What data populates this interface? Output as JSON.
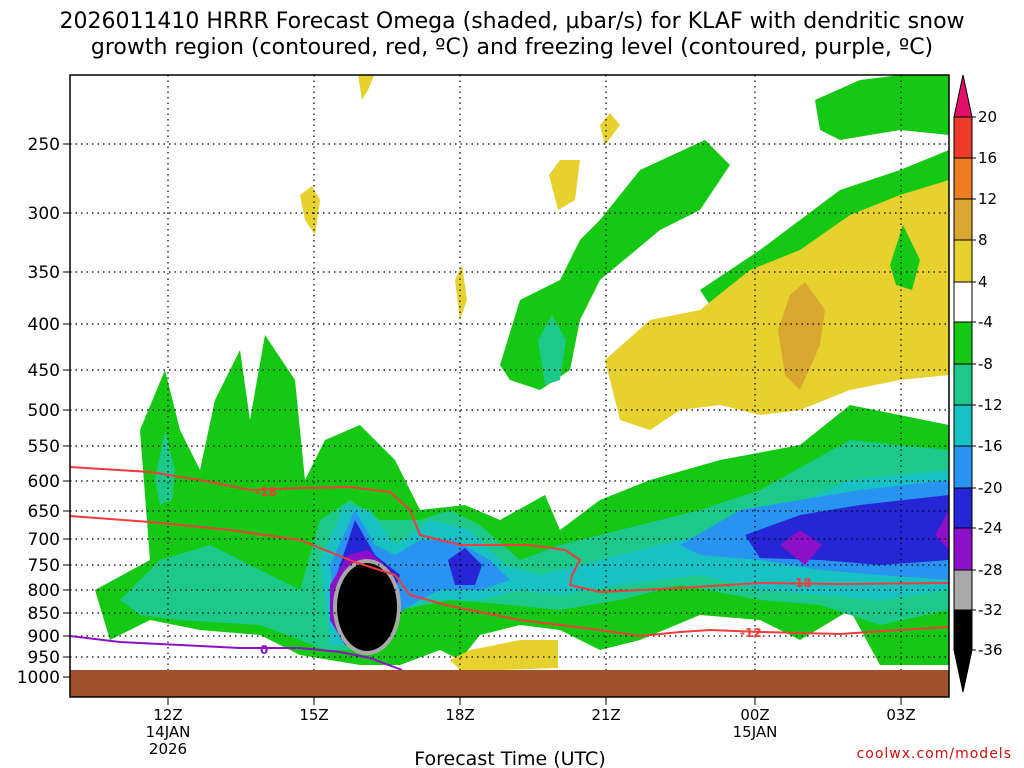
{
  "chart_data": {
    "type": "heatmap",
    "title_line1": "2026011410 HRRR Forecast Omega (shaded, µbar/s) for KLAF with dendritic snow",
    "title_line2": "growth region (contoured, red, ºC) and freezing level (contoured, purple, ºC)",
    "xlabel": "Forecast Time (UTC)",
    "credit": "coolwx.com/models",
    "y_ticks": [
      "250",
      "300",
      "350",
      "400",
      "450",
      "500",
      "550",
      "600",
      "650",
      "700",
      "750",
      "800",
      "850",
      "900",
      "950",
      "1000"
    ],
    "x_ticks": [
      {
        "label": "12Z",
        "date": "14JAN",
        "year": "2026"
      },
      {
        "label": "15Z",
        "date": "",
        "year": ""
      },
      {
        "label": "18Z",
        "date": "",
        "year": ""
      },
      {
        "label": "21Z",
        "date": "",
        "year": ""
      },
      {
        "label": "00Z",
        "date": "15JAN",
        "year": ""
      },
      {
        "label": "03Z",
        "date": "",
        "year": ""
      }
    ],
    "colorbar": {
      "labels": [
        "20",
        "16",
        "12",
        "8",
        "4",
        "-4",
        "-8",
        "-12",
        "-16",
        "-20",
        "-24",
        "-28",
        "-32",
        "-36"
      ],
      "colors": [
        "#e40f6a",
        "#f0392d",
        "#ee7d22",
        "#d9a630",
        "#e6d12e",
        "#ffffff",
        "#14c814",
        "#1cc88a",
        "#19c2c2",
        "#2894f0",
        "#2626d6",
        "#8c10c8",
        "#a8a8a8",
        "#000000"
      ]
    },
    "contour_labels": {
      "dgz_top": "-18",
      "dgz_bottom_right": "-18",
      "dgz_low": "-12",
      "freezing": "0"
    },
    "colors": {
      "terrain": "#a0522d",
      "dgz": "#f03c3c",
      "freezing": "#9010c8"
    }
  }
}
